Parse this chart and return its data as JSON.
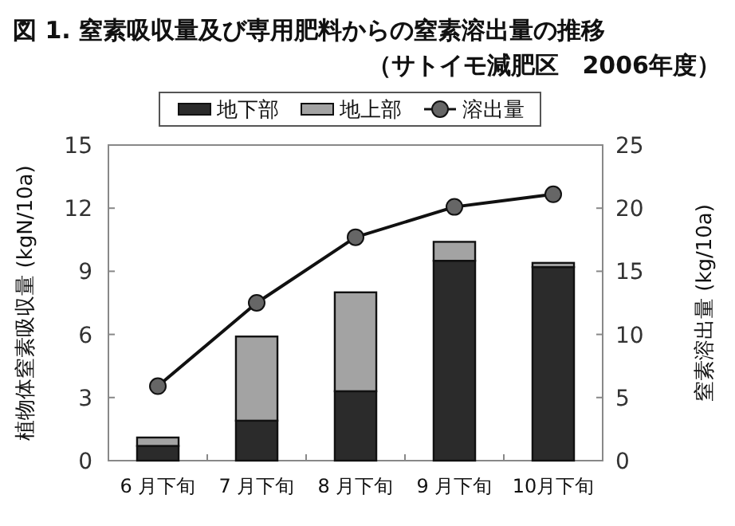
{
  "chart_data": {
    "type": "bar",
    "title": "図 1.  窒素吸収量及び専用肥料からの窒素溶出量の推移",
    "subtitle": "（サトイモ減肥区　2006年度）",
    "ylabel": "植物体窒素吸収量 (kgN/10a)",
    "y2label": "窒素溶出量 (kg/10a)",
    "categories": [
      "6 月下旬",
      "7 月下旬",
      "8 月下旬",
      "9 月下旬",
      "10月下旬"
    ],
    "stacked": true,
    "legend": "top",
    "marker": "circle",
    "ylim": [
      0,
      15
    ],
    "yticks": [
      0,
      3,
      6,
      9,
      12,
      15
    ],
    "y2lim": [
      0,
      25
    ],
    "y2ticks": [
      0,
      5,
      10,
      15,
      20,
      25
    ],
    "series": [
      {
        "name": "地下部",
        "color": "#2b2b2b",
        "values": [
          0.7,
          1.9,
          3.3,
          9.5,
          9.2
        ]
      },
      {
        "name": "地上部",
        "color": "#a3a3a3",
        "values": [
          0.4,
          4.0,
          4.7,
          0.9,
          0.2
        ]
      },
      {
        "name": "溶出量",
        "type": "line",
        "axis": "y2",
        "color": "#111111",
        "values": [
          5.9,
          12.5,
          17.7,
          20.1,
          21.1
        ]
      }
    ]
  }
}
